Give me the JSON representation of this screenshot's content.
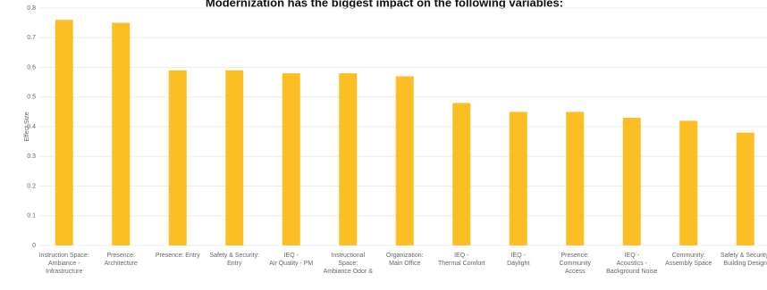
{
  "chart_data": {
    "type": "bar",
    "title": "Modernization has the biggest impact on the following variables:",
    "y_label": "Effect Size",
    "categories": [
      "Instruction Space:\nAmbiance -\nInfrastructure",
      "Presence:\nArchitecture",
      "Presence: Entry",
      "Safety & Security:\nEntry",
      "IEQ -\nAir Quality - PM",
      "Instructional\nSpace:\nAmbiance Odor &",
      "Organization:\nMain Office",
      "IEQ -\nThermal Comfort",
      "IEQ -\nDaylight",
      "Presence:\nCommunity\nAccess",
      "IEQ -\nAcoustics -\nBackground Noise",
      "Community:\nAssembly Space",
      "Safety & Security:\nBuilding Design"
    ],
    "values": [
      0.76,
      0.75,
      0.59,
      0.59,
      0.58,
      0.58,
      0.57,
      0.48,
      0.45,
      0.45,
      0.43,
      0.42,
      0.38
    ],
    "color": "#fbbf24",
    "ylim": [
      0,
      0.8
    ],
    "yticks": [
      0,
      0.1,
      0.2,
      0.3,
      0.4,
      0.5,
      0.6,
      0.7,
      0.8
    ],
    "grid": true
  }
}
